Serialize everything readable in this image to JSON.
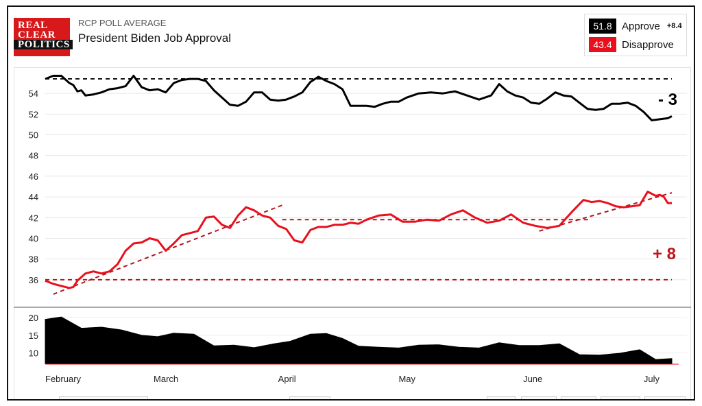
{
  "header": {
    "logo_lines": [
      "REAL",
      "CLEAR",
      "POLITICS"
    ],
    "label": "RCP POLL AVERAGE",
    "title": "President Biden Job Approval"
  },
  "legend": {
    "approve": {
      "value": "51.8",
      "label": "Approve",
      "color": "#000000"
    },
    "disapprove": {
      "value": "43.4",
      "label": "Disapprove",
      "color": "#e8101c"
    },
    "spread": "+8.4"
  },
  "chart_data": {
    "type": "line",
    "x_labels": [
      "February",
      "March",
      "April",
      "May",
      "June",
      "July"
    ],
    "x_range": [
      "2022-02-01",
      "2022-07-07"
    ],
    "ylim": [
      34,
      56
    ],
    "yticks": [
      36,
      38,
      40,
      42,
      44,
      46,
      48,
      50,
      52,
      54
    ],
    "series": [
      {
        "name": "Approve",
        "color": "#000000",
        "x": [
          "2022-02-01",
          "2022-02-03",
          "2022-02-05",
          "2022-02-07",
          "2022-02-08",
          "2022-02-09",
          "2022-02-10",
          "2022-02-11",
          "2022-02-13",
          "2022-02-15",
          "2022-02-17",
          "2022-02-19",
          "2022-02-21",
          "2022-02-23",
          "2022-02-25",
          "2022-02-27",
          "2022-03-01",
          "2022-03-03",
          "2022-03-05",
          "2022-03-07",
          "2022-03-09",
          "2022-03-11",
          "2022-03-13",
          "2022-03-15",
          "2022-03-17",
          "2022-03-19",
          "2022-03-21",
          "2022-03-23",
          "2022-03-25",
          "2022-03-27",
          "2022-03-29",
          "2022-03-31",
          "2022-04-02",
          "2022-04-04",
          "2022-04-06",
          "2022-04-08",
          "2022-04-10",
          "2022-04-12",
          "2022-04-14",
          "2022-04-16",
          "2022-04-18",
          "2022-04-20",
          "2022-04-22",
          "2022-04-24",
          "2022-04-26",
          "2022-04-28",
          "2022-04-30",
          "2022-05-02",
          "2022-05-05",
          "2022-05-08",
          "2022-05-11",
          "2022-05-14",
          "2022-05-17",
          "2022-05-20",
          "2022-05-23",
          "2022-05-25",
          "2022-05-27",
          "2022-05-29",
          "2022-05-31",
          "2022-06-02",
          "2022-06-04",
          "2022-06-06",
          "2022-06-08",
          "2022-06-10",
          "2022-06-12",
          "2022-06-14",
          "2022-06-16",
          "2022-06-18",
          "2022-06-20",
          "2022-06-22",
          "2022-06-24",
          "2022-06-26",
          "2022-06-28",
          "2022-06-30",
          "2022-07-02",
          "2022-07-04",
          "2022-07-06",
          "2022-07-07"
        ],
        "values": [
          55.4,
          55.7,
          55.7,
          55.0,
          54.8,
          54.2,
          54.3,
          53.8,
          53.9,
          54.1,
          54.4,
          54.5,
          54.7,
          55.7,
          54.6,
          54.3,
          54.4,
          54.1,
          55.0,
          55.3,
          55.4,
          55.4,
          55.2,
          54.3,
          53.6,
          52.9,
          52.8,
          53.2,
          54.1,
          54.1,
          53.4,
          53.3,
          53.4,
          53.7,
          54.1,
          55.1,
          55.6,
          55.2,
          54.9,
          54.4,
          52.8,
          52.8,
          52.8,
          52.7,
          53.0,
          53.2,
          53.2,
          53.6,
          54.0,
          54.1,
          54.0,
          54.2,
          53.8,
          53.4,
          53.8,
          54.9,
          54.2,
          53.8,
          53.6,
          53.1,
          53.0,
          53.5,
          54.1,
          53.8,
          53.7,
          53.1,
          52.5,
          52.4,
          52.5,
          53.0,
          53.0,
          53.1,
          52.8,
          52.2,
          51.4,
          51.5,
          51.6,
          51.8
        ]
      },
      {
        "name": "Disapprove",
        "color": "#e8101c",
        "x": [
          "2022-02-01",
          "2022-02-03",
          "2022-02-05",
          "2022-02-07",
          "2022-02-08",
          "2022-02-09",
          "2022-02-11",
          "2022-02-13",
          "2022-02-15",
          "2022-02-17",
          "2022-02-19",
          "2022-02-21",
          "2022-02-23",
          "2022-02-25",
          "2022-02-27",
          "2022-03-01",
          "2022-03-03",
          "2022-03-05",
          "2022-03-07",
          "2022-03-09",
          "2022-03-11",
          "2022-03-13",
          "2022-03-15",
          "2022-03-17",
          "2022-03-19",
          "2022-03-21",
          "2022-03-23",
          "2022-03-25",
          "2022-03-27",
          "2022-03-29",
          "2022-03-31",
          "2022-04-02",
          "2022-04-04",
          "2022-04-06",
          "2022-04-08",
          "2022-04-10",
          "2022-04-12",
          "2022-04-14",
          "2022-04-16",
          "2022-04-18",
          "2022-04-20",
          "2022-04-22",
          "2022-04-25",
          "2022-04-28",
          "2022-05-01",
          "2022-05-04",
          "2022-05-07",
          "2022-05-10",
          "2022-05-13",
          "2022-05-16",
          "2022-05-19",
          "2022-05-22",
          "2022-05-25",
          "2022-05-28",
          "2022-05-31",
          "2022-06-03",
          "2022-06-06",
          "2022-06-09",
          "2022-06-12",
          "2022-06-15",
          "2022-06-17",
          "2022-06-19",
          "2022-06-21",
          "2022-06-23",
          "2022-06-25",
          "2022-06-27",
          "2022-06-29",
          "2022-07-01",
          "2022-07-03",
          "2022-07-04",
          "2022-07-05",
          "2022-07-06",
          "2022-07-07"
        ],
        "values": [
          35.9,
          35.6,
          35.4,
          35.2,
          35.3,
          35.9,
          36.6,
          36.8,
          36.6,
          36.8,
          37.5,
          38.8,
          39.5,
          39.6,
          40.0,
          39.8,
          38.8,
          39.5,
          40.3,
          40.5,
          40.7,
          42.0,
          42.1,
          41.3,
          41.0,
          42.2,
          43.0,
          42.7,
          42.2,
          42.0,
          41.2,
          40.9,
          39.8,
          39.6,
          40.8,
          41.1,
          41.1,
          41.3,
          41.3,
          41.5,
          41.4,
          41.8,
          42.2,
          42.3,
          41.6,
          41.6,
          41.8,
          41.7,
          42.3,
          42.7,
          42.0,
          41.5,
          41.7,
          42.3,
          41.5,
          41.2,
          41.0,
          41.2,
          42.5,
          43.7,
          43.5,
          43.6,
          43.4,
          43.1,
          43.0,
          43.1,
          43.2,
          44.5,
          44.1,
          44.2,
          44.0,
          43.4,
          43.4
        ]
      }
    ],
    "spread_panel": {
      "ylim": [
        7,
        21
      ],
      "yticks": [
        10,
        15,
        20
      ],
      "x": [
        "2022-02-01",
        "2022-02-05",
        "2022-02-10",
        "2022-02-15",
        "2022-02-20",
        "2022-02-25",
        "2022-03-01",
        "2022-03-05",
        "2022-03-10",
        "2022-03-15",
        "2022-03-20",
        "2022-03-25",
        "2022-03-30",
        "2022-04-03",
        "2022-04-08",
        "2022-04-12",
        "2022-04-16",
        "2022-04-20",
        "2022-04-25",
        "2022-04-30",
        "2022-05-05",
        "2022-05-10",
        "2022-05-15",
        "2022-05-20",
        "2022-05-25",
        "2022-05-30",
        "2022-06-04",
        "2022-06-09",
        "2022-06-14",
        "2022-06-19",
        "2022-06-24",
        "2022-06-29",
        "2022-07-03",
        "2022-07-07"
      ],
      "values": [
        19.5,
        20.2,
        17.0,
        17.3,
        16.5,
        15.0,
        14.6,
        15.6,
        15.3,
        12.0,
        12.2,
        11.5,
        12.6,
        13.3,
        15.3,
        15.5,
        14.1,
        11.9,
        11.6,
        11.4,
        12.2,
        12.3,
        11.6,
        11.4,
        12.9,
        12.1,
        12.1,
        12.6,
        9.5,
        9.4,
        9.9,
        10.9,
        8.1,
        8.4
      ]
    },
    "trendlines": [
      {
        "series": "Approve",
        "from": [
          "2022-02-01",
          55.4
        ],
        "to": [
          "2022-07-07",
          55.4
        ]
      },
      {
        "series": "Disapprove",
        "from": [
          "2022-02-01",
          36.0
        ],
        "to": [
          "2022-07-07",
          36.0
        ]
      },
      {
        "series": "Disapprove",
        "from": [
          "2022-02-03",
          34.6
        ],
        "to": [
          "2022-04-01",
          43.2
        ]
      },
      {
        "series": "Disapprove",
        "from": [
          "2022-04-01",
          41.8
        ],
        "to": [
          "2022-06-17",
          41.8
        ]
      },
      {
        "series": "Disapprove",
        "from": [
          "2022-06-04",
          40.7
        ],
        "to": [
          "2022-07-07",
          44.4
        ]
      }
    ],
    "annotations": [
      {
        "text": "- 3",
        "color": "#000000"
      },
      {
        "text": "+ 8",
        "color": "#c0141c"
      }
    ]
  }
}
